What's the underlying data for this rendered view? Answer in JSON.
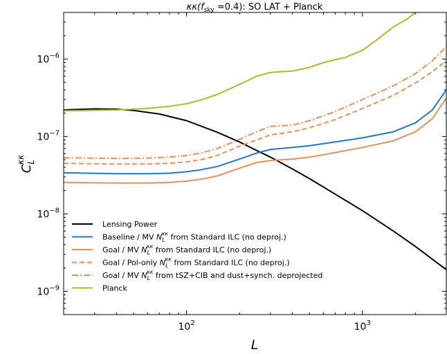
{
  "chart_data": {
    "type": "line",
    "title": "κκ(f_sky =0.4): SO LAT + Planck",
    "title_parts": {
      "pre": "κκ(",
      "f": "f",
      "sub": "sky",
      "post": " =0.4): SO LAT + Planck"
    },
    "xlabel": "L",
    "ylabel": "C_L^κκ",
    "ylabel_parts": {
      "main": "C",
      "sub": "L",
      "sup": "κκ"
    },
    "xscale": "log",
    "yscale": "log",
    "xlim": [
      20,
      3000
    ],
    "ylim": [
      5e-10,
      4e-06
    ],
    "xticks": [
      {
        "value": 100,
        "base": "10",
        "exp": "2"
      },
      {
        "value": 1000,
        "base": "10",
        "exp": "3"
      }
    ],
    "yticks": [
      {
        "value": 1e-09,
        "base": "10",
        "exp": "−9"
      },
      {
        "value": 1e-08,
        "base": "10",
        "exp": "−8"
      },
      {
        "value": 1e-07,
        "base": "10",
        "exp": "−7"
      },
      {
        "value": 1e-06,
        "base": "10",
        "exp": "−6"
      }
    ],
    "legend_position": "lower-left",
    "series": [
      {
        "name": "Lensing Power",
        "color": "#000000",
        "dash": "solid",
        "x": [
          20,
          30,
          40,
          50,
          70,
          100,
          150,
          200,
          250,
          300,
          400,
          500,
          700,
          1000,
          1500,
          2000,
          3000
        ],
        "y": [
          2.2e-07,
          2.27e-07,
          2.25e-07,
          2.17e-07,
          1.95e-07,
          1.6e-07,
          1.13e-07,
          8.5e-08,
          6.6e-08,
          5.4e-08,
          3.8e-08,
          2.85e-08,
          1.8e-08,
          1.1e-08,
          6e-09,
          3.8e-09,
          1.9e-09
        ]
      },
      {
        "name": "Baseline / MV N_L^κκ from Standard ILC (no deproj.)",
        "label_parts": {
          "pre": "Baseline / MV ",
          "N": "N",
          "sub": "L",
          "sup": "κκ",
          "post": " from Standard ILC (no deproj.)"
        },
        "color": "#1f77d4",
        "dash": "solid",
        "x": [
          20,
          40,
          60,
          80,
          100,
          120,
          150,
          200,
          250,
          300,
          400,
          500,
          700,
          1000,
          1500,
          2000,
          2500,
          2800,
          3000
        ],
        "y": [
          3.4e-08,
          3.3e-08,
          3.3e-08,
          3.35e-08,
          3.5e-08,
          3.7e-08,
          4.1e-08,
          5.1e-08,
          6.1e-08,
          6.8e-08,
          7.2e-08,
          7.6e-08,
          8.5e-08,
          9.6e-08,
          1.15e-07,
          1.5e-07,
          2.2e-07,
          3.2e-07,
          4e-07
        ]
      },
      {
        "name": "Goal / MV N_L^κκ from Standard ILC (no deproj.)",
        "label_parts": {
          "pre": "Goal / MV ",
          "N": "N",
          "sub": "L",
          "sup": "κκ",
          "post": " from Standard ILC (no deproj.)"
        },
        "color": "#f28e54",
        "dash": "solid",
        "x": [
          20,
          40,
          60,
          80,
          100,
          120,
          150,
          200,
          250,
          300,
          400,
          500,
          700,
          1000,
          1500,
          2000,
          2500,
          2800,
          3000
        ],
        "y": [
          2.55e-08,
          2.5e-08,
          2.5e-08,
          2.55e-08,
          2.65e-08,
          2.8e-08,
          3.1e-08,
          3.9e-08,
          4.6e-08,
          4.9e-08,
          5.1e-08,
          5.4e-08,
          6.2e-08,
          7.2e-08,
          8.8e-08,
          1.15e-07,
          1.7e-07,
          2.5e-07,
          3.1e-07
        ]
      },
      {
        "name": "Goal / Pol-only N_L^κκ from Standard ILC (no deproj.)",
        "label_parts": {
          "pre": "Goal / Pol-only ",
          "N": "N",
          "sub": "L",
          "sup": "κκ",
          "post": " from Standard ILC (no deproj.)"
        },
        "color": "#f28e54",
        "dash": "dashed",
        "x": [
          20,
          40,
          60,
          80,
          100,
          120,
          150,
          200,
          300,
          400,
          500,
          700,
          1000,
          1500,
          2000,
          2500,
          3000
        ],
        "y": [
          4.5e-08,
          4.4e-08,
          4.4e-08,
          4.5e-08,
          4.7e-08,
          5e-08,
          5.7e-08,
          7.5e-08,
          1.05e-07,
          1.15e-07,
          1.3e-07,
          1.65e-07,
          2.3e-07,
          3.4e-07,
          4.9e-07,
          6.9e-07,
          9.5e-07
        ]
      },
      {
        "name": "Goal / MV N_L^κκ from tSZ+CIB and dust+synch. deprojected",
        "label_parts": {
          "pre": "Goal / MV ",
          "N": "N",
          "sub": "L",
          "sup": "κκ",
          "post": " from tSZ+CIB and dust+synch. deprojected"
        },
        "color": "#f28e54",
        "dash": "dashdot",
        "x": [
          20,
          40,
          60,
          80,
          100,
          120,
          150,
          200,
          250,
          300,
          400,
          500,
          700,
          1000,
          1500,
          2000,
          2500,
          3000
        ],
        "y": [
          5.3e-08,
          5.2e-08,
          5.25e-08,
          5.4e-08,
          5.7e-08,
          6.1e-08,
          7e-08,
          9.2e-08,
          1.15e-07,
          1.35e-07,
          1.4e-07,
          1.6e-07,
          2.1e-07,
          3e-07,
          4.5e-07,
          6.5e-07,
          9.5e-07,
          1.45e-06
        ]
      },
      {
        "name": "Planck",
        "color": "#b5b824",
        "dash": "solid",
        "x": [
          20,
          40,
          60,
          80,
          100,
          120,
          150,
          200,
          250,
          300,
          350,
          400,
          500,
          600,
          700,
          800,
          1000,
          1200,
          1500,
          1800,
          2000
        ],
        "y": [
          2.15e-07,
          2.2e-07,
          2.3e-07,
          2.45e-07,
          2.65e-07,
          2.95e-07,
          3.5e-07,
          4.7e-07,
          6e-07,
          6.7e-07,
          6.9e-07,
          7e-07,
          7.8e-07,
          9e-07,
          9.8e-07,
          1.05e-06,
          1.3e-06,
          1.75e-06,
          2.6e-06,
          3.3e-06,
          4e-06
        ]
      }
    ]
  }
}
